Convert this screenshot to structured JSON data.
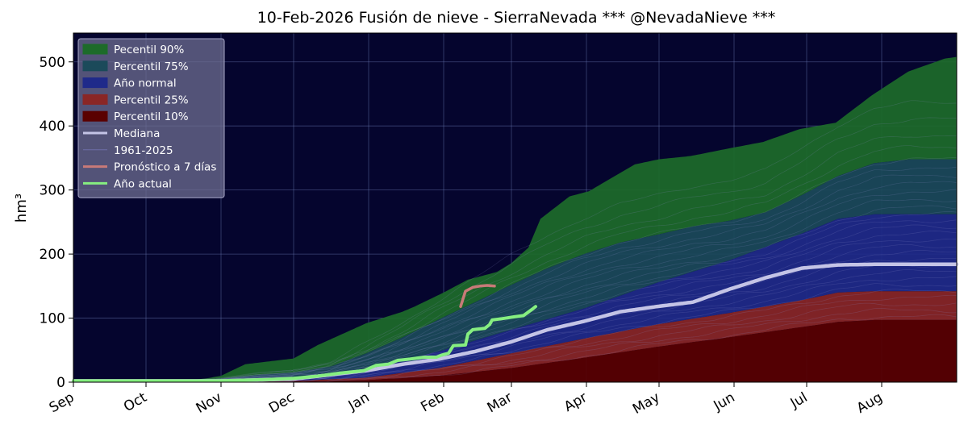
{
  "chart_data": {
    "type": "area",
    "title": "10-Feb-2026  Fusión de nieve - SierraNevada  *** @NevadaNieve ***",
    "ylabel": "hm³",
    "xlabel": "",
    "ylim": [
      0,
      545
    ],
    "yticks": [
      0,
      100,
      200,
      300,
      400,
      500
    ],
    "x_months": [
      "Sep",
      "Oct",
      "Nov",
      "Dec",
      "Jan",
      "Feb",
      "Mar",
      "Apr",
      "May",
      "Jun",
      "Jul",
      "Aug"
    ],
    "x_unit": "days since 1 Sep",
    "xlim": [
      0,
      365
    ],
    "grid": true,
    "legend_position": "upper-left",
    "colors": {
      "background": "#05052e",
      "p90": "#1d6b2a",
      "p75": "#1b4a5a",
      "normal": "#1f2a8a",
      "p25": "#8a2626",
      "p10": "#5a0000",
      "mediana": "#c4c4e6",
      "historic": "#8c8cc8",
      "pronostico": "#c87a78",
      "actual": "#86ee80",
      "grid": "#6a78b0"
    },
    "legend": [
      {
        "label": "Pecentil 90%",
        "kind": "patch",
        "color": "#1d6b2a"
      },
      {
        "label": "Percentil 75%",
        "kind": "patch",
        "color": "#1b4a5a"
      },
      {
        "label": "Año normal",
        "kind": "patch",
        "color": "#1f2a8a"
      },
      {
        "label": "Percentil 25%",
        "kind": "patch",
        "color": "#8a2626"
      },
      {
        "label": "Percentil 10%",
        "kind": "patch",
        "color": "#5a0000"
      },
      {
        "label": "Mediana",
        "kind": "line",
        "color": "#c4c4e6"
      },
      {
        "label": "1961-2025",
        "kind": "line",
        "color": "#6e6ea8"
      },
      {
        "label": "Pronóstico a 7 días",
        "kind": "line",
        "color": "#c87a78"
      },
      {
        "label": "Año actual",
        "kind": "line",
        "color": "#86ee80"
      }
    ],
    "bands": [
      {
        "name": "Pecentil 90%",
        "lower": "p75",
        "upper": "p90"
      },
      {
        "name": "Percentil 75%",
        "lower": "normal",
        "upper": "p75"
      },
      {
        "name": "Año normal",
        "lower": "p25",
        "upper": "normal"
      },
      {
        "name": "Percentil 25%",
        "lower": "p10",
        "upper": "p25"
      },
      {
        "name": "Percentil 10%",
        "lower": "zero",
        "upper": "p10"
      }
    ],
    "series": {
      "p90": [
        [
          0,
          2
        ],
        [
          45,
          2
        ],
        [
          55,
          6
        ],
        [
          61,
          10
        ],
        [
          71,
          28
        ],
        [
          91,
          37
        ],
        [
          101,
          58
        ],
        [
          121,
          92
        ],
        [
          136,
          110
        ],
        [
          141,
          118
        ],
        [
          153,
          140
        ],
        [
          163,
          160
        ],
        [
          175,
          172
        ],
        [
          181,
          186
        ],
        [
          188,
          210
        ],
        [
          193,
          255
        ],
        [
          205,
          290
        ],
        [
          213,
          298
        ],
        [
          222,
          318
        ],
        [
          232,
          340
        ],
        [
          242,
          348
        ],
        [
          255,
          353
        ],
        [
          271,
          365
        ],
        [
          285,
          375
        ],
        [
          300,
          395
        ],
        [
          315,
          405
        ],
        [
          330,
          448
        ],
        [
          345,
          485
        ],
        [
          360,
          505
        ],
        [
          380,
          516
        ],
        [
          400,
          518
        ],
        [
          403,
          518
        ]
      ],
      "p75": [
        [
          0,
          2
        ],
        [
          45,
          2
        ],
        [
          61,
          5
        ],
        [
          76,
          11
        ],
        [
          91,
          15
        ],
        [
          106,
          24
        ],
        [
          121,
          45
        ],
        [
          136,
          70
        ],
        [
          151,
          98
        ],
        [
          166,
          125
        ],
        [
          181,
          152
        ],
        [
          196,
          178
        ],
        [
          211,
          200
        ],
        [
          226,
          218
        ],
        [
          241,
          230
        ],
        [
          256,
          243
        ],
        [
          271,
          252
        ],
        [
          286,
          265
        ],
        [
          301,
          292
        ],
        [
          316,
          322
        ],
        [
          331,
          342
        ],
        [
          346,
          348
        ],
        [
          403,
          348
        ]
      ],
      "normal": [
        [
          0,
          2
        ],
        [
          61,
          3
        ],
        [
          91,
          6
        ],
        [
          121,
          20
        ],
        [
          151,
          48
        ],
        [
          181,
          82
        ],
        [
          211,
          115
        ],
        [
          241,
          155
        ],
        [
          271,
          190
        ],
        [
          301,
          232
        ],
        [
          316,
          255
        ],
        [
          331,
          262
        ],
        [
          403,
          262
        ]
      ],
      "p25": [
        [
          0,
          2
        ],
        [
          91,
          2
        ],
        [
          121,
          7
        ],
        [
          151,
          22
        ],
        [
          181,
          45
        ],
        [
          211,
          68
        ],
        [
          241,
          90
        ],
        [
          271,
          108
        ],
        [
          301,
          128
        ],
        [
          316,
          140
        ],
        [
          331,
          142
        ],
        [
          403,
          142
        ]
      ],
      "p10": [
        [
          0,
          1
        ],
        [
          91,
          1
        ],
        [
          121,
          3
        ],
        [
          151,
          10
        ],
        [
          181,
          22
        ],
        [
          211,
          38
        ],
        [
          241,
          55
        ],
        [
          271,
          70
        ],
        [
          301,
          86
        ],
        [
          316,
          94
        ],
        [
          331,
          97
        ],
        [
          403,
          97
        ]
      ],
      "mediana": [
        [
          0,
          2
        ],
        [
          61,
          2
        ],
        [
          91,
          5
        ],
        [
          121,
          18
        ],
        [
          136,
          28
        ],
        [
          151,
          36
        ],
        [
          166,
          48
        ],
        [
          181,
          63
        ],
        [
          196,
          82
        ],
        [
          211,
          95
        ],
        [
          226,
          110
        ],
        [
          241,
          118
        ],
        [
          256,
          125
        ],
        [
          271,
          145
        ],
        [
          286,
          163
        ],
        [
          301,
          178
        ],
        [
          316,
          183
        ],
        [
          331,
          184
        ],
        [
          403,
          184
        ]
      ],
      "pronostico": [
        [
          160,
          118
        ],
        [
          162,
          142
        ],
        [
          165,
          148
        ],
        [
          168,
          150
        ],
        [
          171,
          151
        ],
        [
          174,
          150
        ]
      ],
      "actual": [
        [
          0,
          2
        ],
        [
          30,
          2
        ],
        [
          60,
          2
        ],
        [
          80,
          4
        ],
        [
          91,
          6
        ],
        [
          100,
          9
        ],
        [
          110,
          14
        ],
        [
          120,
          18
        ],
        [
          125,
          26
        ],
        [
          130,
          28
        ],
        [
          134,
          34
        ],
        [
          139,
          36
        ],
        [
          145,
          39
        ],
        [
          150,
          39
        ],
        [
          152,
          42
        ],
        [
          155,
          45
        ],
        [
          157,
          57
        ],
        [
          162,
          58
        ],
        [
          163,
          75
        ],
        [
          165,
          82
        ],
        [
          170,
          84
        ],
        [
          172,
          90
        ],
        [
          173,
          97
        ],
        [
          177,
          99
        ],
        [
          182,
          102
        ],
        [
          186,
          104
        ],
        [
          190,
          115
        ],
        [
          191,
          118
        ]
      ]
    }
  }
}
